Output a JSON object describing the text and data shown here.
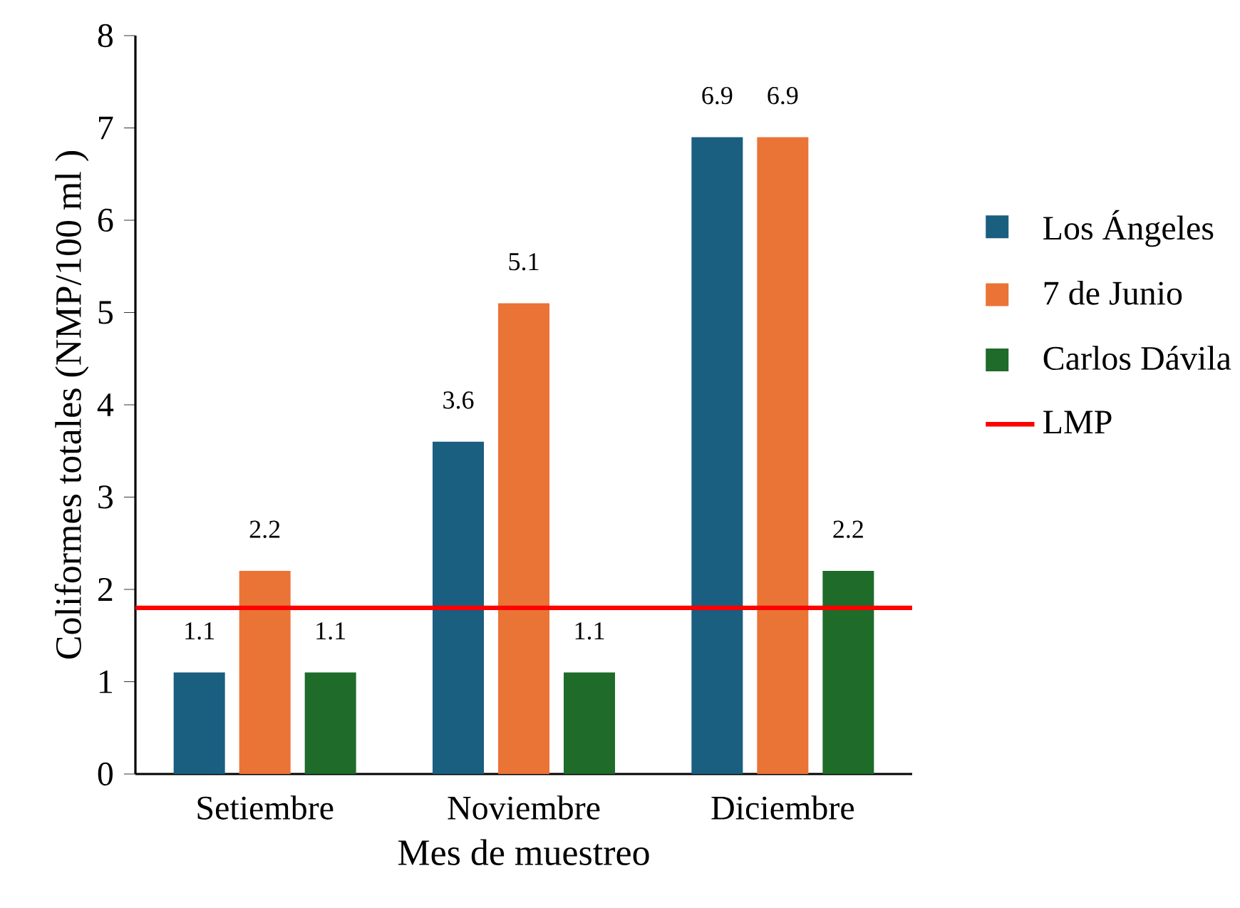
{
  "chart_data": {
    "type": "bar",
    "xlabel": "Mes de muestreo",
    "ylabel": "Coliformes totales (NMP/100 ml )",
    "categories": [
      "Setiembre",
      "Noviembre",
      "Diciembre"
    ],
    "series": [
      {
        "name": "Los Ángeles",
        "color": "#1a5e80",
        "values": [
          1.1,
          3.6,
          6.9
        ]
      },
      {
        "name": "7 de Junio",
        "color": "#ea7336",
        "values": [
          2.2,
          5.1,
          6.9
        ]
      },
      {
        "name": "Carlos Dávila",
        "color": "#1e6b2a",
        "values": [
          1.1,
          1.1,
          2.2
        ]
      }
    ],
    "ref_lines": [
      {
        "axis": "y",
        "value": 1.8,
        "label": "LMP",
        "color": "#ff0000"
      }
    ],
    "ylim": [
      0,
      8
    ],
    "yticks": [
      0,
      1,
      2,
      3,
      4,
      5,
      6,
      7,
      8
    ],
    "data_labels": true,
    "grid": false,
    "legend": "right"
  }
}
